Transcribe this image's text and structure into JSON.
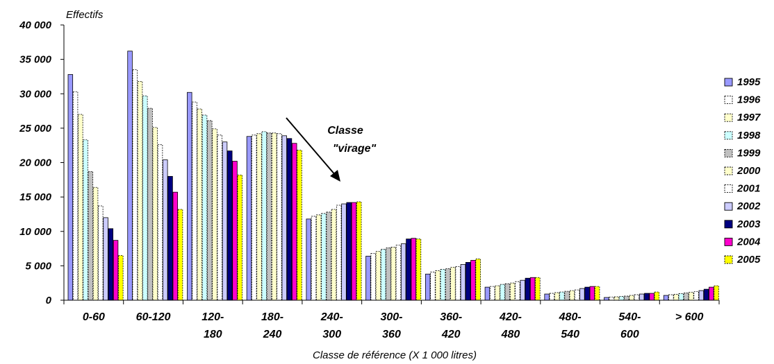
{
  "chart_data": {
    "type": "bar",
    "ylabel": "Effectifs",
    "xlabel": "Classe de référence (X 1 000 litres)",
    "ylim": [
      0,
      40000
    ],
    "yticks": [
      0,
      5000,
      10000,
      15000,
      20000,
      25000,
      30000,
      35000,
      40000
    ],
    "ytick_labels": [
      "0",
      "5 000",
      "10 000",
      "15 000",
      "20 000",
      "25 000",
      "30 000",
      "35 000",
      "40 000"
    ],
    "categories": [
      [
        "0-60"
      ],
      [
        "60-120"
      ],
      [
        "120-",
        "180"
      ],
      [
        "180-",
        "240"
      ],
      [
        "240-",
        "300"
      ],
      [
        "300-",
        "360"
      ],
      [
        "360-",
        "420"
      ],
      [
        "420-",
        "480"
      ],
      [
        "480-",
        "540"
      ],
      [
        "540-",
        "600"
      ],
      [
        "> 600"
      ]
    ],
    "legend_position": "right",
    "grid": false,
    "series": [
      {
        "name": "1995",
        "color": "#9999ff",
        "dashed": false,
        "values": [
          32800,
          36200,
          30200,
          23800,
          11800,
          6400,
          3800,
          1900,
          900,
          400,
          700
        ]
      },
      {
        "name": "1996",
        "color": "#ffffff",
        "dashed": true,
        "values": [
          30300,
          33500,
          28800,
          24000,
          12200,
          6800,
          4100,
          2000,
          1000,
          450,
          800
        ]
      },
      {
        "name": "1997",
        "color": "#ffffcc",
        "dashed": true,
        "values": [
          27000,
          31800,
          27800,
          24200,
          12400,
          7100,
          4300,
          2100,
          1100,
          500,
          850
        ]
      },
      {
        "name": "1998",
        "color": "#ccffff",
        "dashed": true,
        "values": [
          23300,
          29700,
          26900,
          24500,
          12600,
          7400,
          4500,
          2300,
          1200,
          550,
          950
        ]
      },
      {
        "name": "1999",
        "color": "#c0c0c0",
        "dashed": true,
        "values": [
          18700,
          27900,
          26100,
          24300,
          12800,
          7600,
          4600,
          2400,
          1300,
          600,
          1050
        ]
      },
      {
        "name": "2000",
        "color": "#ffffcc",
        "dashed": true,
        "values": [
          16400,
          25100,
          24900,
          24300,
          13200,
          7700,
          4800,
          2500,
          1400,
          700,
          1150
        ]
      },
      {
        "name": "2001",
        "color": "#ffffff",
        "dashed": true,
        "values": [
          13700,
          22600,
          24000,
          24200,
          13800,
          8000,
          4900,
          2700,
          1500,
          800,
          1250
        ]
      },
      {
        "name": "2002",
        "color": "#ccccff",
        "dashed": false,
        "values": [
          12000,
          20400,
          23000,
          23900,
          14000,
          8200,
          5200,
          2900,
          1700,
          900,
          1400
        ]
      },
      {
        "name": "2003",
        "color": "#000080",
        "dashed": false,
        "values": [
          10400,
          18000,
          21700,
          23500,
          14200,
          8900,
          5500,
          3200,
          1900,
          1000,
          1600
        ]
      },
      {
        "name": "2004",
        "color": "#ff00cc",
        "dashed": false,
        "values": [
          8700,
          15700,
          20200,
          22800,
          14200,
          9000,
          5800,
          3300,
          2000,
          1000,
          1900
        ]
      },
      {
        "name": "2005",
        "color": "#ffff00",
        "dashed": true,
        "values": [
          6500,
          13200,
          18200,
          21800,
          14300,
          8900,
          6000,
          3300,
          2000,
          1200,
          2100
        ]
      }
    ],
    "annotation": {
      "lines": [
        "Classe",
        "\"virage\""
      ]
    }
  }
}
